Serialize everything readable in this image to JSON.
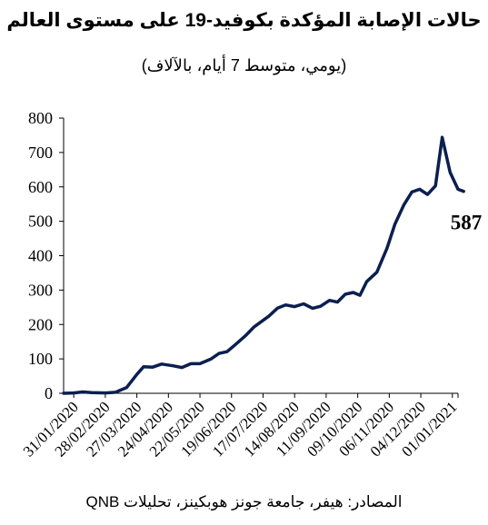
{
  "header": {
    "title": "حالات الإصابة المؤكدة بكوفيد-19 على مستوى العالم",
    "subtitle": "(يومي، متوسط 7 أيام، بالآلاف)"
  },
  "footer": {
    "source": "المصادر: هيفر، جامعة جونز هوبكينز، تحليلات QNB"
  },
  "chart_data": {
    "type": "line",
    "title": "حالات الإصابة المؤكدة بكوفيد-19 على مستوى العالم",
    "subtitle": "(يومي، متوسط 7 أيام، بالآلاف)",
    "xlabel": "",
    "ylabel": "",
    "ylim": [
      0,
      800
    ],
    "yticks": [
      0,
      100,
      200,
      300,
      400,
      500,
      600,
      700,
      800
    ],
    "xlim": [
      "2020-01-22",
      "2021-01-06"
    ],
    "xticks": [
      "31/01/2020",
      "28/02/2020",
      "27/03/2020",
      "24/04/2020",
      "22/05/2020",
      "19/06/2020",
      "17/07/2020",
      "14/08/2020",
      "11/09/2020",
      "09/10/2020",
      "06/11/2020",
      "04/12/2020",
      "01/01/2021"
    ],
    "grid": false,
    "legend": "none",
    "line_color": "#0b1f4f",
    "end_label": "587",
    "series": [
      {
        "points": [
          [
            "2020-01-22",
            0
          ],
          [
            "2020-01-31",
            1
          ],
          [
            "2020-02-08",
            4
          ],
          [
            "2020-02-16",
            2
          ],
          [
            "2020-02-28",
            1
          ],
          [
            "2020-03-08",
            3
          ],
          [
            "2020-03-18",
            17
          ],
          [
            "2020-03-27",
            55
          ],
          [
            "2020-04-02",
            77
          ],
          [
            "2020-04-10",
            76
          ],
          [
            "2020-04-18",
            85
          ],
          [
            "2020-04-28",
            80
          ],
          [
            "2020-05-06",
            75
          ],
          [
            "2020-05-14",
            86
          ],
          [
            "2020-05-22",
            86
          ],
          [
            "2020-06-01",
            100
          ],
          [
            "2020-06-08",
            116
          ],
          [
            "2020-06-15",
            121
          ],
          [
            "2020-06-23",
            143
          ],
          [
            "2020-07-01",
            166
          ],
          [
            "2020-07-09",
            193
          ],
          [
            "2020-07-17",
            212
          ],
          [
            "2020-07-22",
            224
          ],
          [
            "2020-07-30",
            248
          ],
          [
            "2020-08-06",
            257
          ],
          [
            "2020-08-14",
            252
          ],
          [
            "2020-08-22",
            260
          ],
          [
            "2020-08-30",
            247
          ],
          [
            "2020-09-06",
            253
          ],
          [
            "2020-09-14",
            270
          ],
          [
            "2020-09-21",
            265
          ],
          [
            "2020-09-28",
            288
          ],
          [
            "2020-10-05",
            293
          ],
          [
            "2020-10-11",
            285
          ],
          [
            "2020-10-17",
            325
          ],
          [
            "2020-10-26",
            352
          ],
          [
            "2020-11-04",
            422
          ],
          [
            "2020-11-11",
            492
          ],
          [
            "2020-11-19",
            548
          ],
          [
            "2020-11-26",
            585
          ],
          [
            "2020-12-03",
            593
          ],
          [
            "2020-12-10",
            578
          ],
          [
            "2020-12-17",
            603
          ],
          [
            "2020-12-23",
            744
          ],
          [
            "2020-12-30",
            642
          ],
          [
            "2021-01-06",
            593
          ],
          [
            "2021-01-11",
            587
          ]
        ]
      }
    ]
  }
}
